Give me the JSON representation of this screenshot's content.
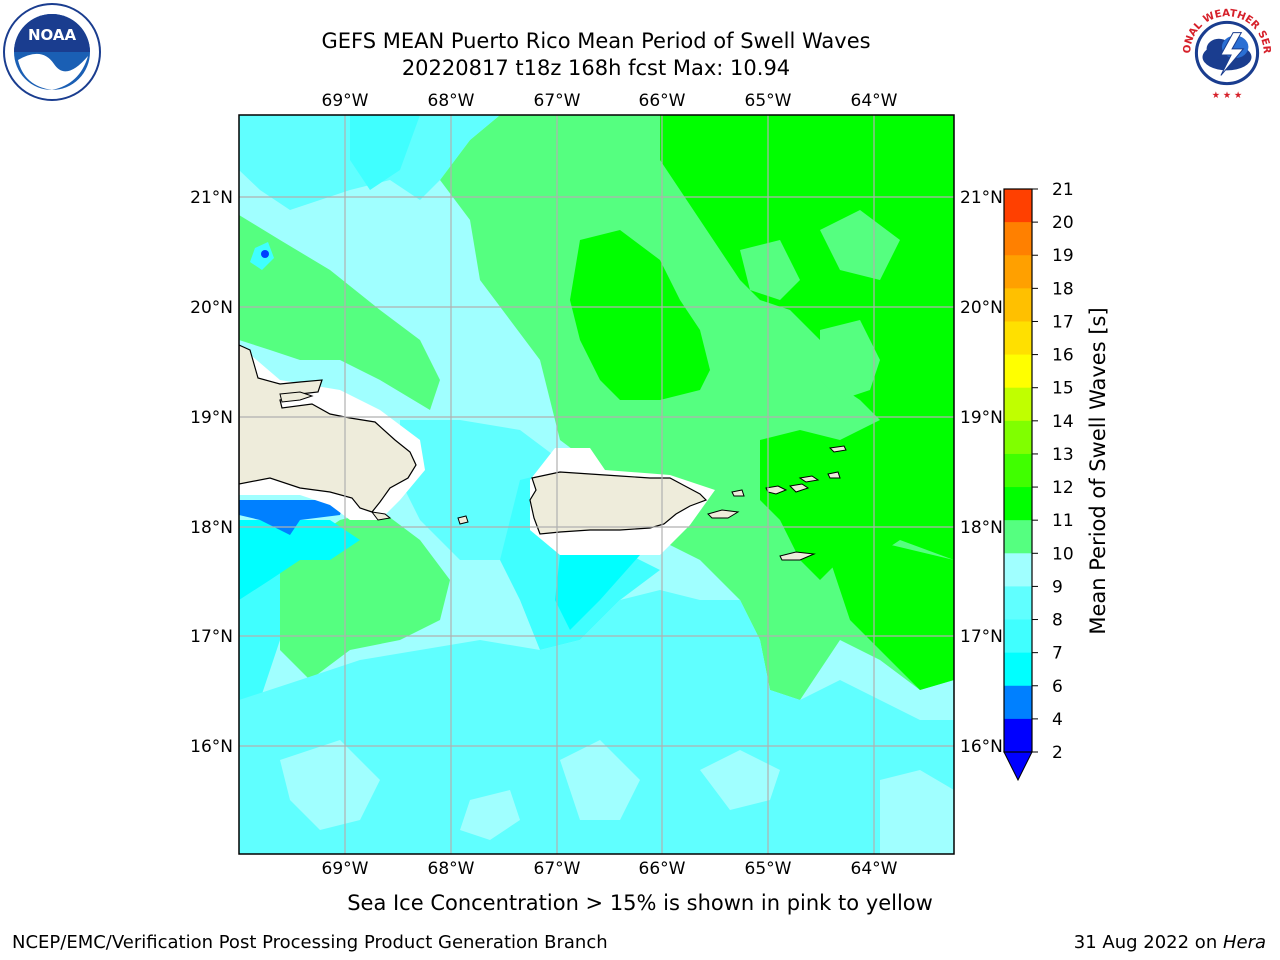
{
  "header": {
    "title_line1": "GEFS MEAN Puerto Rico Mean Period of Swell Waves",
    "title_line2": "20220817 t18z 168h fcst   Max: 10.94"
  },
  "logos": {
    "left": "NOAA",
    "left_ring_text": "NATIONAL OCEANIC AND ATMOSPHERIC ADMINISTRATION · U.S. DEPARTMENT OF COMMERCE",
    "right_ring_text": "NATIONAL WEATHER SERVICE"
  },
  "map": {
    "lon_labels": [
      "69°W",
      "68°W",
      "67°W",
      "66°W",
      "65°W",
      "64°W"
    ],
    "lat_labels": [
      "21°N",
      "20°N",
      "19°N",
      "18°N",
      "17°N",
      "16°N"
    ],
    "land_color": "#eeecdb",
    "grid_color": "#b0b0b0"
  },
  "colorbar": {
    "label": "Mean Period of Swell Waves [s]",
    "ticks": [
      "2",
      "4",
      "6",
      "7",
      "8",
      "9",
      "10",
      "11",
      "12",
      "13",
      "14",
      "15",
      "16",
      "17",
      "18",
      "19",
      "20",
      "21"
    ],
    "colors": [
      "#0000ff",
      "#0080ff",
      "#00ffff",
      "#40ffff",
      "#60ffff",
      "#a0ffff",
      "#55ff80",
      "#00ff00",
      "#40ff00",
      "#80ff00",
      "#c0ff00",
      "#ffff00",
      "#ffe000",
      "#ffc000",
      "#ffa000",
      "#ff8000",
      "#ff4000",
      "#ff0000"
    ]
  },
  "footer": {
    "caption": "Sea Ice Concentration > 15% is shown in pink to yellow",
    "left": "NCEP/EMC/Verification Post Processing Product Generation Branch",
    "right_date": "31 Aug 2022 on ",
    "right_host": "Hera"
  }
}
